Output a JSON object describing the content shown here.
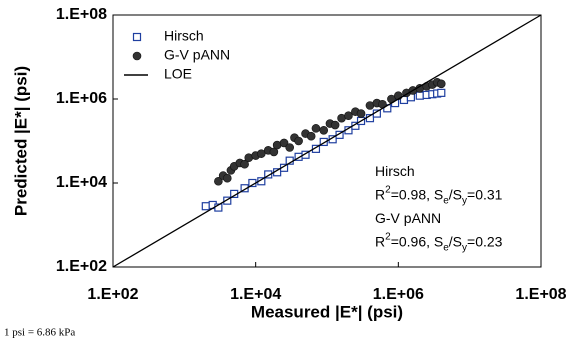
{
  "chart_data": {
    "type": "scatter",
    "x_label": "Measured |E*| (psi)",
    "y_label": "Predicted |E*| (psi)",
    "log_x": true,
    "log_y": true,
    "xlim": [
      100,
      100000000
    ],
    "ylim": [
      100,
      100000000
    ],
    "xticks": [
      {
        "value": 100,
        "label": "1.E+02"
      },
      {
        "value": 10000,
        "label": "1.E+04"
      },
      {
        "value": 1000000,
        "label": "1.E+06"
      },
      {
        "value": 100000000,
        "label": "1.E+08"
      }
    ],
    "yticks": [
      {
        "value": 100,
        "label": "1.E+02"
      },
      {
        "value": 10000,
        "label": "1.E+04"
      },
      {
        "value": 1000000,
        "label": "1.E+06"
      },
      {
        "value": 100000000,
        "label": "1.E+08"
      }
    ],
    "legend_position": "upper-left",
    "series": [
      {
        "name": "Hirsch",
        "marker": "open-square",
        "color": "#1f3fa0",
        "x": [
          2000,
          2500,
          3000,
          4000,
          5000,
          7000,
          9000,
          12000,
          15000,
          20000,
          25000,
          30000,
          40000,
          50000,
          70000,
          90000,
          120000,
          150000,
          200000,
          250000,
          300000,
          400000,
          500000,
          700000,
          900000,
          1200000,
          1500000,
          2000000,
          2500000,
          3000000,
          3500000,
          4000000
        ],
        "values": [
          2800,
          3000,
          2600,
          3800,
          5500,
          7500,
          10000,
          11000,
          16000,
          18000,
          23000,
          34000,
          42000,
          47000,
          65000,
          95000,
          110000,
          140000,
          180000,
          230000,
          300000,
          350000,
          450000,
          600000,
          800000,
          950000,
          1100000,
          1200000,
          1250000,
          1300000,
          1350000,
          1400000
        ]
      },
      {
        "name": "G-V pANN",
        "marker": "filled-circle",
        "color": "#333333",
        "x": [
          3000,
          3500,
          4000,
          4500,
          5000,
          6000,
          7000,
          8000,
          10000,
          12000,
          15000,
          18000,
          20000,
          25000,
          30000,
          35000,
          40000,
          50000,
          60000,
          70000,
          90000,
          110000,
          130000,
          160000,
          200000,
          250000,
          300000,
          400000,
          500000,
          600000,
          800000,
          1000000,
          1300000,
          1600000,
          2000000,
          2500000,
          3000000,
          3500000,
          4000000
        ],
        "values": [
          11000,
          15000,
          13000,
          20000,
          25000,
          30000,
          28000,
          40000,
          45000,
          50000,
          60000,
          55000,
          80000,
          90000,
          70000,
          120000,
          100000,
          150000,
          130000,
          200000,
          180000,
          260000,
          240000,
          350000,
          400000,
          500000,
          450000,
          700000,
          800000,
          750000,
          1000000,
          1200000,
          1400000,
          1600000,
          1800000,
          2000000,
          2200000,
          2500000,
          2300000
        ]
      },
      {
        "name": "LOE",
        "marker": "line",
        "color": "#000000",
        "x": [
          100,
          100000000
        ],
        "values": [
          100,
          100000000
        ]
      }
    ],
    "annotations": [
      [
        {
          "text": "Hirsch"
        }
      ],
      [
        {
          "text": "R"
        },
        {
          "text": "2",
          "shift": "super"
        },
        {
          "text": "=0.98, S"
        },
        {
          "text": "e",
          "shift": "sub"
        },
        {
          "text": "/S"
        },
        {
          "text": "y",
          "shift": "sub"
        },
        {
          "text": "=0.31"
        }
      ],
      [
        {
          "text": "G-V pANN"
        }
      ],
      [
        {
          "text": "R"
        },
        {
          "text": "2",
          "shift": "super"
        },
        {
          "text": "=0.96, S"
        },
        {
          "text": "e",
          "shift": "sub"
        },
        {
          "text": "/S"
        },
        {
          "text": "y",
          "shift": "sub"
        },
        {
          "text": "=0.23"
        }
      ]
    ],
    "footnote": "1 psi = 6.86 kPa"
  }
}
